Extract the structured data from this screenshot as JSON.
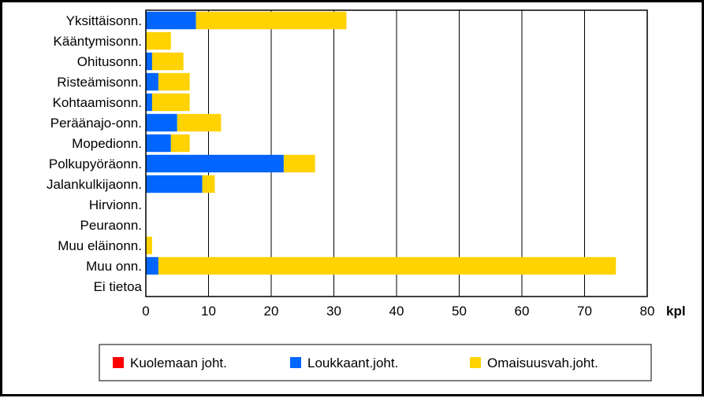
{
  "chart_data": {
    "type": "bar",
    "orientation": "horizontal",
    "stacked": true,
    "categories": [
      "Yksittäisonn.",
      "Kääntymisonn.",
      "Ohitusonn.",
      "Risteämisonn.",
      "Kohtaamisonn.",
      "Peräänajo-onn.",
      "Mopedionn.",
      "Polkupyöräonn.",
      "Jalankulkijaonn.",
      "Hirvionn.",
      "Peuraonn.",
      "Muu eläinonn.",
      "Muu onn.",
      "Ei tietoa"
    ],
    "series": [
      {
        "name": "Kuolemaan joht.",
        "color": "#ff0000",
        "values": [
          0,
          0,
          0,
          0,
          0,
          0,
          0,
          0,
          0,
          0,
          0,
          0,
          0,
          0
        ]
      },
      {
        "name": "Loukkaant.joht.",
        "color": "#0066ff",
        "values": [
          8,
          0,
          1,
          2,
          1,
          5,
          4,
          22,
          9,
          0,
          0,
          0,
          2,
          0
        ]
      },
      {
        "name": "Omaisuusvah.joht.",
        "color": "#ffd200",
        "values": [
          24,
          4,
          5,
          5,
          6,
          7,
          3,
          5,
          2,
          0,
          0,
          1,
          73,
          0
        ]
      }
    ],
    "x_ticks": [
      0,
      10,
      20,
      30,
      40,
      50,
      60,
      70,
      80
    ],
    "xlim": [
      0,
      80
    ],
    "xlabel": "kpl",
    "grid": "vertical",
    "legend_position": "bottom"
  }
}
